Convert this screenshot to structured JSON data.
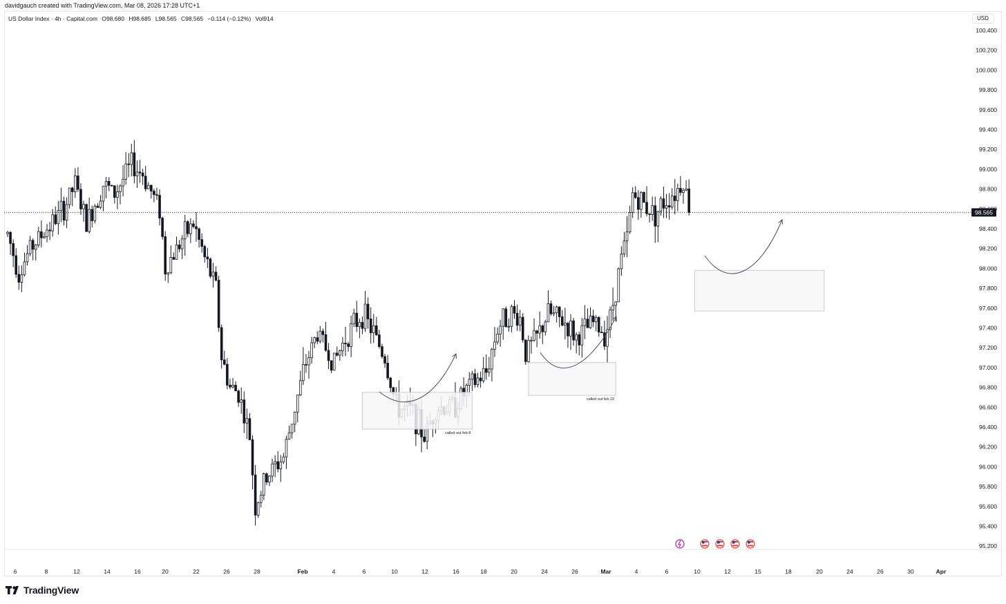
{
  "header": {
    "credit": "davidgauch created with TradingView.com, Mar 08, 2026 17:28 UTC+1",
    "symbol": "US Dollar Index · 4h · Capital.com",
    "open": "O98.680",
    "high": "H98.685",
    "low": "L98.565",
    "close": "C98.565",
    "change": "−0.114 (−0.12%)",
    "volume": "Vol914",
    "currency": "USD"
  },
  "brand": {
    "name": "TradingView"
  },
  "colors": {
    "candle": "#131722",
    "grid": "#e0e3eb",
    "box_fill": "#f7f7f9",
    "box_stroke": "#c8cbd1"
  },
  "chart_data": {
    "type": "candlestick",
    "ylim": [
      95.2,
      100.4
    ],
    "y_ticks": [
      "100.400",
      "100.200",
      "100.000",
      "99.800",
      "99.600",
      "99.400",
      "99.200",
      "99.000",
      "98.800",
      "98.600",
      "98.400",
      "98.200",
      "98.000",
      "97.800",
      "97.600",
      "97.400",
      "97.200",
      "97.000",
      "96.800",
      "96.600",
      "96.400",
      "96.200",
      "96.000",
      "95.800",
      "95.600",
      "95.400",
      "95.200"
    ],
    "x_ticks": [
      "6",
      "8",
      "12",
      "14",
      "16",
      "20",
      "22",
      "26",
      "28",
      "Feb",
      "4",
      "6",
      "10",
      "12",
      "16",
      "18",
      "20",
      "24",
      "26",
      "Mar",
      "4",
      "6",
      "10",
      "12",
      "15",
      "18",
      "20",
      "24",
      "26",
      "30",
      "Apr"
    ],
    "last_price": "98.565",
    "last_price_value": 98.565,
    "anchors": [
      {
        "t": 0,
        "p": 98.35
      },
      {
        "t": 4,
        "p": 97.95
      },
      {
        "t": 8,
        "p": 98.2
      },
      {
        "t": 14,
        "p": 98.4
      },
      {
        "t": 20,
        "p": 98.6
      },
      {
        "t": 24,
        "p": 98.85
      },
      {
        "t": 28,
        "p": 98.45
      },
      {
        "t": 34,
        "p": 98.85
      },
      {
        "t": 38,
        "p": 98.75
      },
      {
        "t": 44,
        "p": 99.05
      },
      {
        "t": 48,
        "p": 98.95
      },
      {
        "t": 54,
        "p": 98.6
      },
      {
        "t": 56,
        "p": 98.0
      },
      {
        "t": 62,
        "p": 98.3
      },
      {
        "t": 66,
        "p": 98.45
      },
      {
        "t": 70,
        "p": 98.1
      },
      {
        "t": 74,
        "p": 97.8
      },
      {
        "t": 76,
        "p": 97.1
      },
      {
        "t": 79,
        "p": 96.8
      },
      {
        "t": 82,
        "p": 96.75
      },
      {
        "t": 86,
        "p": 96.3
      },
      {
        "t": 88,
        "p": 95.6
      },
      {
        "t": 92,
        "p": 95.9
      },
      {
        "t": 98,
        "p": 96.1
      },
      {
        "t": 102,
        "p": 96.6
      },
      {
        "t": 106,
        "p": 97.05
      },
      {
        "t": 110,
        "p": 97.35
      },
      {
        "t": 116,
        "p": 97.05
      },
      {
        "t": 120,
        "p": 97.3
      },
      {
        "t": 126,
        "p": 97.55
      },
      {
        "t": 130,
        "p": 97.35
      },
      {
        "t": 134,
        "p": 97.1
      },
      {
        "t": 138,
        "p": 96.6
      },
      {
        "t": 144,
        "p": 96.55
      },
      {
        "t": 148,
        "p": 96.3
      },
      {
        "t": 152,
        "p": 96.6
      },
      {
        "t": 158,
        "p": 96.6
      },
      {
        "t": 164,
        "p": 96.8
      },
      {
        "t": 170,
        "p": 96.95
      },
      {
        "t": 174,
        "p": 97.4
      },
      {
        "t": 178,
        "p": 97.55
      },
      {
        "t": 182,
        "p": 97.5
      },
      {
        "t": 184,
        "p": 97.15
      },
      {
        "t": 188,
        "p": 97.3
      },
      {
        "t": 192,
        "p": 97.55
      },
      {
        "t": 198,
        "p": 97.45
      },
      {
        "t": 202,
        "p": 97.3
      },
      {
        "t": 208,
        "p": 97.45
      },
      {
        "t": 212,
        "p": 97.35
      },
      {
        "t": 214,
        "p": 97.5
      },
      {
        "t": 216,
        "p": 97.8
      },
      {
        "t": 218,
        "p": 98.1
      },
      {
        "t": 220,
        "p": 98.3
      },
      {
        "t": 222,
        "p": 98.75
      },
      {
        "t": 226,
        "p": 98.65
      },
      {
        "t": 230,
        "p": 98.55
      },
      {
        "t": 234,
        "p": 98.7
      },
      {
        "t": 238,
        "p": 98.8
      },
      {
        "t": 240,
        "p": 98.9
      },
      {
        "t": 242,
        "p": 98.6
      }
    ],
    "annotations": [
      {
        "type": "zone",
        "label": "called out feb 8",
        "t_start": 126,
        "t_end": 165,
        "p_top": 96.75,
        "p_bottom": 96.38
      },
      {
        "type": "zone",
        "label": "called out feb 22",
        "t_start": 185,
        "t_end": 216,
        "p_top": 97.05,
        "p_bottom": 96.72
      },
      {
        "type": "zone",
        "label": "",
        "t_start": 244,
        "t_end": 290,
        "p_top": 97.98,
        "p_bottom": 97.57
      }
    ]
  }
}
